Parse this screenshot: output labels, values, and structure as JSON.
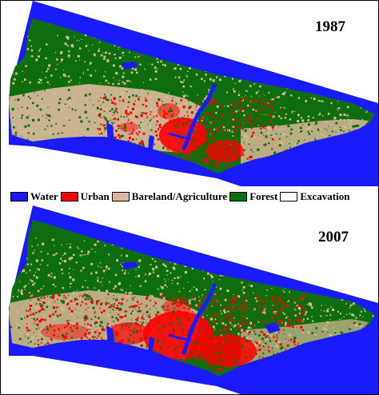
{
  "panels": [
    {
      "year": "1987"
    },
    {
      "year": "2007"
    }
  ],
  "legend": [
    {
      "label": "Water",
      "color": "#1a1aff"
    },
    {
      "label": "Urban",
      "color": "#ff0000"
    },
    {
      "label": "Bareland/Agriculture",
      "color": "#d8b999"
    },
    {
      "label": "Forest",
      "color": "#0e6e0e"
    },
    {
      "label": "Excavation",
      "color": "#ffffff"
    }
  ],
  "colors": {
    "water": "#1a1aff",
    "urban": "#ff0000",
    "bareland": "#d8b999",
    "forest": "#0e6e0e",
    "excavation": "#ffffff"
  }
}
